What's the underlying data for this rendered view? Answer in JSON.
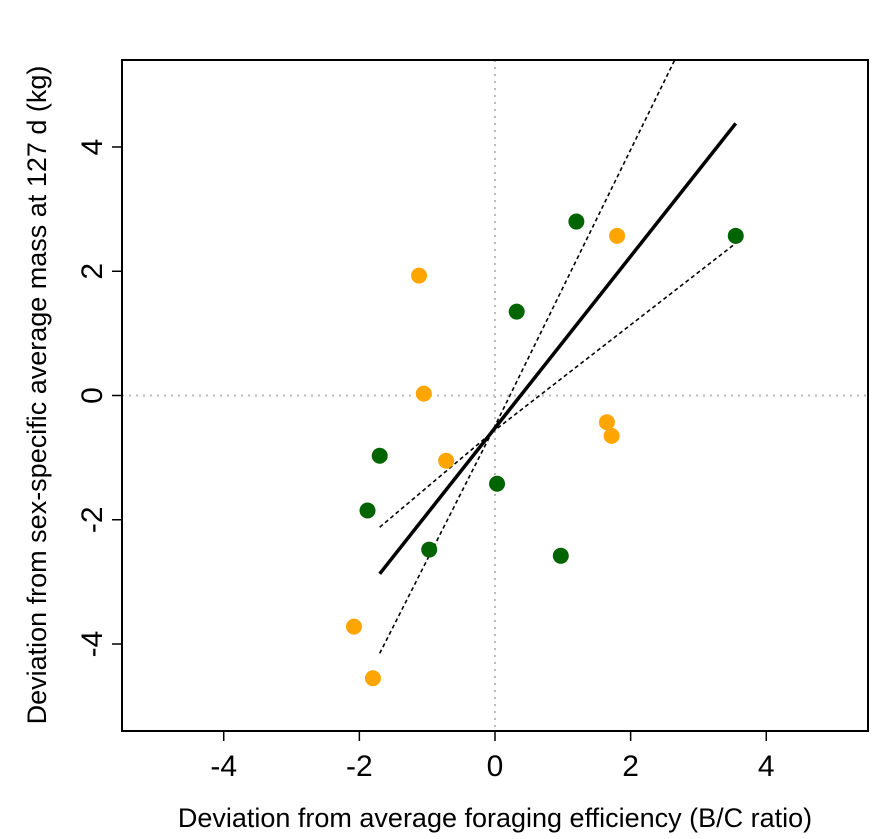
{
  "chart_data": {
    "type": "scatter",
    "title": "",
    "xlabel": "Deviation from average foraging efficiency (B/C ratio)",
    "ylabel": "Deviation from sex-specific average mass at 127 d (kg)",
    "xlim": [
      -5.5,
      5.5
    ],
    "ylim": [
      -5.4,
      5.4
    ],
    "xticks": [
      -4,
      -2,
      0,
      2,
      4
    ],
    "yticks": [
      -4,
      -2,
      0,
      2,
      4
    ],
    "x_tick_labels": [
      "-4",
      "-2",
      "0",
      "2",
      "4"
    ],
    "y_tick_labels": [
      "-4",
      "-2",
      "0",
      "2",
      "4"
    ],
    "grid": false,
    "reference_lines": [
      {
        "orientation": "vertical",
        "value": 0,
        "style": "dotted",
        "color": "#bbbbbb"
      },
      {
        "orientation": "horizontal",
        "value": 0,
        "style": "dotted",
        "color": "#bbbbbb"
      }
    ],
    "series": [
      {
        "color": "#006400",
        "points": [
          {
            "x": 1.2,
            "y": 2.8
          },
          {
            "x": 3.55,
            "y": 2.57
          },
          {
            "x": 0.32,
            "y": 1.35
          },
          {
            "x": -1.7,
            "y": -0.97
          },
          {
            "x": 0.03,
            "y": -1.42
          },
          {
            "x": -1.88,
            "y": -1.85
          },
          {
            "x": -0.97,
            "y": -2.48
          },
          {
            "x": 0.97,
            "y": -2.58
          }
        ]
      },
      {
        "color": "#ffa500",
        "points": [
          {
            "x": 1.8,
            "y": 2.57
          },
          {
            "x": -1.12,
            "y": 1.93
          },
          {
            "x": -1.05,
            "y": 0.03
          },
          {
            "x": 1.65,
            "y": -0.43
          },
          {
            "x": 1.72,
            "y": -0.65
          },
          {
            "x": -0.72,
            "y": -1.05
          },
          {
            "x": -2.08,
            "y": -3.72
          },
          {
            "x": -1.8,
            "y": -4.55
          }
        ]
      }
    ],
    "fit_line": {
      "color": "#000000",
      "style": "solid",
      "points": [
        [
          -1.7,
          -2.87
        ],
        [
          3.55,
          4.38
        ]
      ]
    },
    "confidence_bands": [
      {
        "color": "#000000",
        "style": "dashed",
        "points": [
          [
            -1.7,
            -4.15
          ],
          [
            -0.05,
            -0.6
          ],
          [
            2.65,
            5.4
          ]
        ]
      },
      {
        "color": "#000000",
        "style": "dashed",
        "points": [
          [
            -1.7,
            -2.12
          ],
          [
            -0.05,
            -0.6
          ],
          [
            3.55,
            2.45
          ]
        ]
      }
    ]
  }
}
